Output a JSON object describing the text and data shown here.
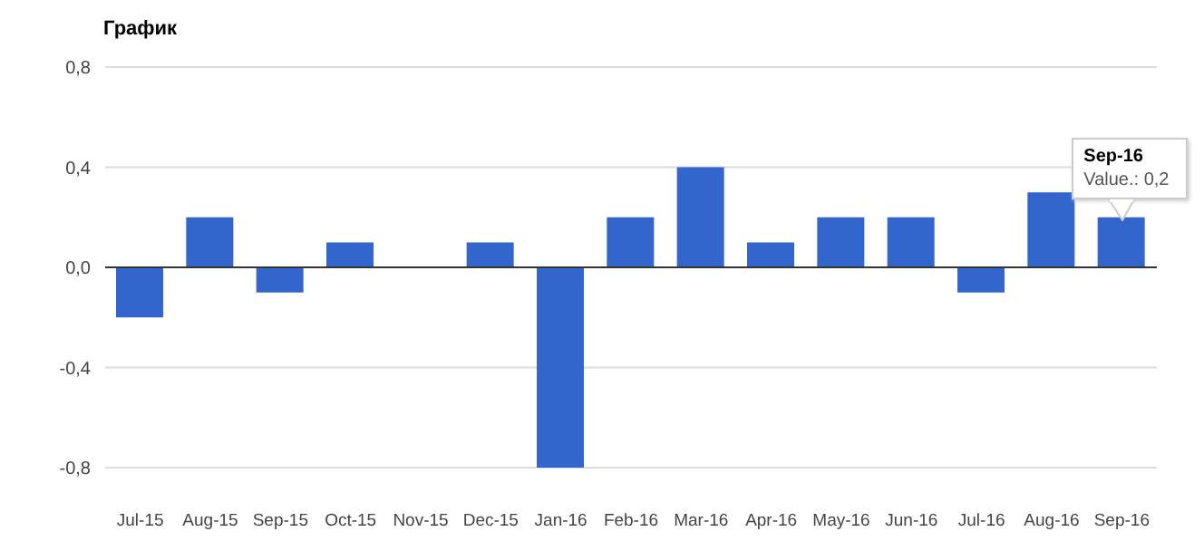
{
  "chart_data": {
    "type": "bar",
    "title": "График",
    "categories": [
      "Jul-15",
      "Aug-15",
      "Sep-15",
      "Oct-15",
      "Nov-15",
      "Dec-15",
      "Jan-16",
      "Feb-16",
      "Mar-16",
      "Apr-16",
      "May-16",
      "Jun-16",
      "Jul-16",
      "Aug-16",
      "Sep-16"
    ],
    "series": [
      {
        "color": "#3366cc",
        "values": [
          -0.2,
          0.2,
          -0.1,
          0.1,
          0,
          0.1,
          -0.8,
          0.2,
          0.4,
          0.1,
          0.2,
          0.2,
          -0.1,
          0.3,
          0.2
        ]
      }
    ],
    "ylim": [
      -0.8,
      0.8
    ],
    "yticks": [
      {
        "value": -0.8,
        "label": "-0,8"
      },
      {
        "value": -0.4,
        "label": "-0,4"
      },
      {
        "value": 0,
        "label": "0,0"
      },
      {
        "value": 0.4,
        "label": "0,4"
      },
      {
        "value": 0.8,
        "label": "0,8"
      }
    ],
    "grid": "y",
    "annotations": [
      {
        "text": "Sep-16\nValue.: 0,2",
        "x": "Sep-16",
        "y": 0.2
      }
    ]
  }
}
